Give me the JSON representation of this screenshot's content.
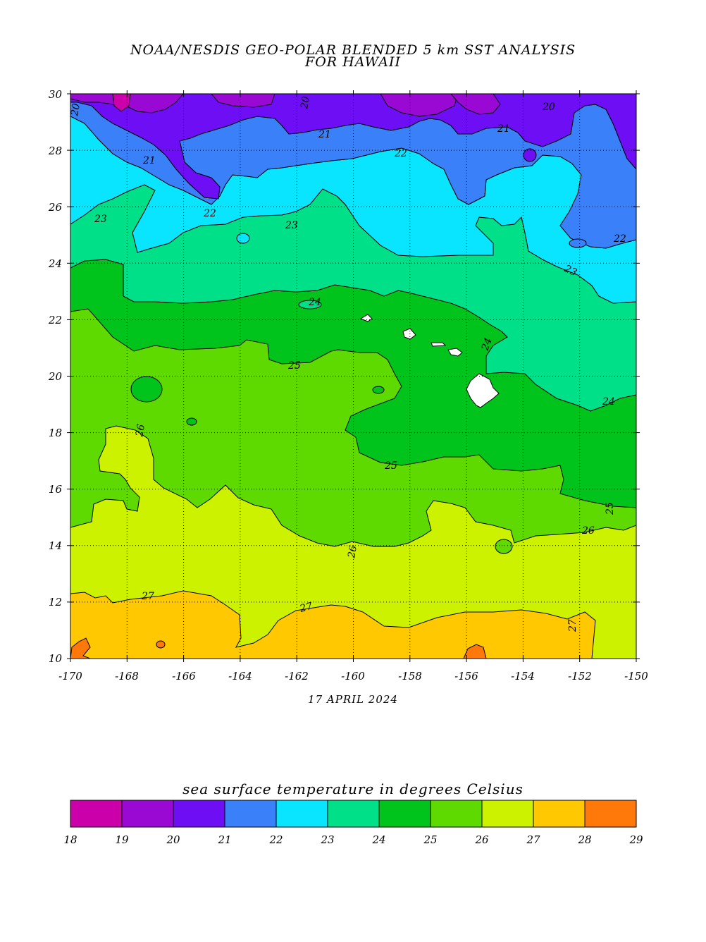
{
  "title_line1": "NOAA/NESDIS GEO-POLAR BLENDED 5 km SST ANALYSIS",
  "title_line2": "FOR HAWAII",
  "date": "17 APRIL 2024",
  "colorbar": {
    "title": "sea surface temperature in degrees Celsius",
    "ticks": [
      "18",
      "19",
      "20",
      "21",
      "22",
      "23",
      "24",
      "25",
      "26",
      "27",
      "28",
      "29"
    ],
    "colors": [
      "#cc00aa",
      "#9a08d4",
      "#6e0ef5",
      "#3a80f9",
      "#09e5ff",
      "#00e088",
      "#00c41b",
      "#5fda00",
      "#ccf200",
      "#ffc800",
      "#ff780a"
    ]
  },
  "map": {
    "lon_labels": [
      "-170",
      "-168",
      "-166",
      "-164",
      "-162",
      "-160",
      "-158",
      "-156",
      "-154",
      "-152",
      "-150"
    ],
    "lat_labels": [
      "30",
      "28",
      "26",
      "24",
      "22",
      "20",
      "18",
      "16",
      "14",
      "12",
      "10"
    ],
    "contour_labels": [
      "20",
      "20",
      "20",
      "21",
      "21",
      "21",
      "22",
      "22",
      "22",
      "23",
      "23",
      "23",
      "24",
      "24",
      "24",
      "25",
      "25",
      "25",
      "26",
      "26",
      "26",
      "27",
      "27",
      "27"
    ]
  }
}
